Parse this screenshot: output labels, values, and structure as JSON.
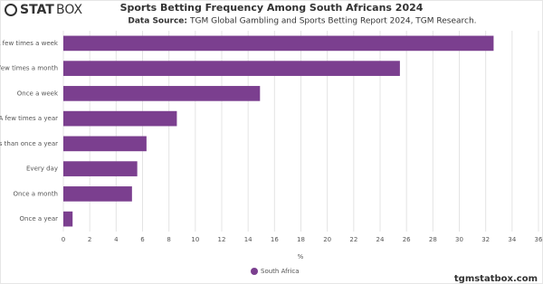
{
  "logo": {
    "bold": "STAT",
    "light": "BOX"
  },
  "watermark": "tgmstatbox.com",
  "chart_data": {
    "type": "hbar",
    "title": "Sports Betting Frequency Among South Africans 2024",
    "source_label": "Data Source:",
    "subtitle": "TGM Global Gambling and Sports Betting Report 2024, TGM Research.",
    "x_label": "%",
    "categories": [
      "A few times a week",
      "A few times a month",
      "Once a week",
      "A few times a year",
      "Less than once a year",
      "Every day",
      "Once a month",
      "Once a year"
    ],
    "series": [
      {
        "name": "South Africa",
        "color": "#7b3f8f",
        "values": [
          32.6,
          25.5,
          14.9,
          8.6,
          6.3,
          5.6,
          5.2,
          0.7
        ]
      }
    ],
    "xlim": [
      0,
      36
    ],
    "xticks": [
      0,
      2,
      4,
      6,
      8,
      10,
      12,
      14,
      16,
      18,
      20,
      22,
      24,
      26,
      28,
      30,
      32,
      34,
      36
    ],
    "grid": true
  }
}
